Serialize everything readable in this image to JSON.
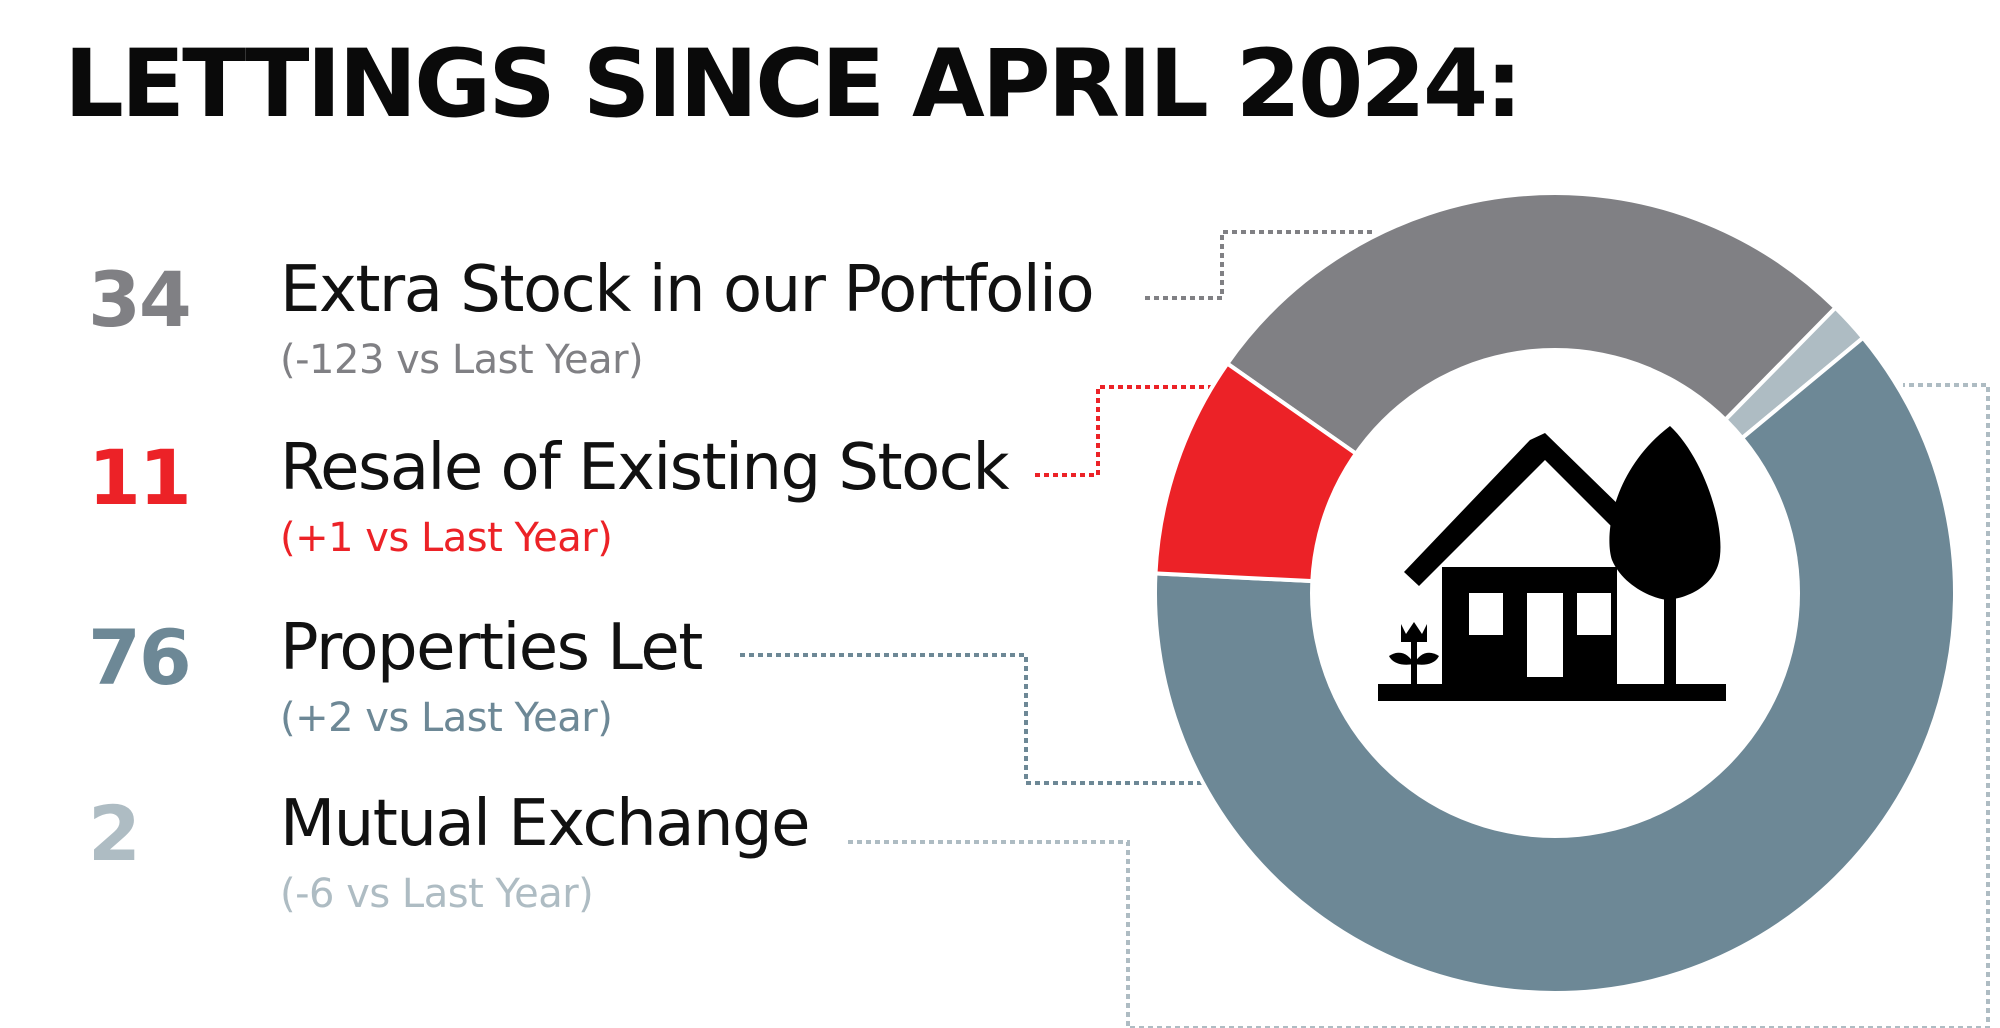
{
  "title": "LETTINGS SINCE APRIL 2024:",
  "stats": [
    {
      "value": "34",
      "label": "Extra Stock in our Portfolio",
      "change": "(-123 vs Last Year)",
      "color": "#808084"
    },
    {
      "value": "11",
      "label": "Resale of Existing Stock",
      "change": "(+1 vs Last Year)",
      "color": "#ec2227"
    },
    {
      "value": "76",
      "label": "Properties Let",
      "change": "(+2 vs Last Year)",
      "color": "#6d8896"
    },
    {
      "value": "2",
      "label": "Mutual Exchange",
      "change": "(-6 vs Last Year)",
      "color": "#aebcc3"
    }
  ],
  "chart_data": {
    "type": "donut",
    "categories": [
      "Extra Stock in our Portfolio",
      "Mutual Exchange",
      "Properties Let",
      "Resale of Existing Stock"
    ],
    "values": [
      34,
      2,
      76,
      11
    ],
    "colors": [
      "#808084",
      "#aebcc3",
      "#6d8896",
      "#ec2227"
    ],
    "center_icon": "house-with-tree-icon"
  }
}
